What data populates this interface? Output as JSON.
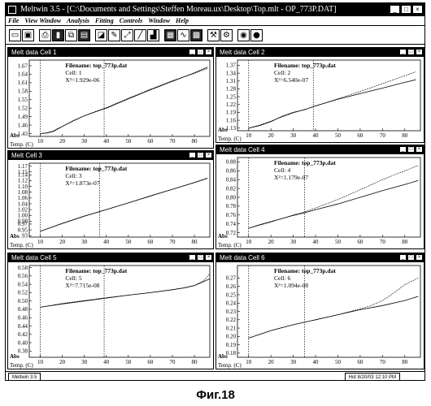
{
  "app": {
    "title": "Meltwin 3.5 - [C:\\Documents and Settings\\Steffen Moreau.ux\\Desktop\\Top.mlt - OP_773P.DAT]",
    "window_controls": [
      "_",
      "□",
      "×"
    ]
  },
  "menu": [
    "File",
    "View Window",
    "Analysis",
    "Fitting",
    "Controls",
    "Window",
    "Help"
  ],
  "toolbar_icons": [
    "open-icon",
    "save-icon",
    "print-icon",
    "melt-icon",
    "copy-icon",
    "paste-icon",
    "plot-icon",
    "edit-icon",
    "zoom-icon",
    "fit-icon",
    "chart-icon",
    "table-icon",
    "curve-icon",
    "wave-icon",
    "tools-icon",
    "gear-icon",
    "cd-icon",
    "record-icon"
  ],
  "windows": [
    {
      "title": "Melt data Cell 1",
      "filename_label": "Filename: top_773p.dat",
      "cell_label": "Cell: 1",
      "chi_label": "X²=1.929e-06",
      "xlabel": "Temp. (C)",
      "ylabel": "Abs"
    },
    {
      "title": "Melt data Cell 2",
      "filename_label": "Filename: top_773p.dat",
      "cell_label": "Cell: 2",
      "chi_label": "X²=6.540e-07",
      "xlabel": "Temp. (C)",
      "ylabel": "Abs"
    },
    {
      "title": "Melt Cell 3",
      "filename_label": "Filename: top_773p.dat",
      "cell_label": "Cell: 3",
      "chi_label": "X²=1.873e-07",
      "xlabel": "Temp. (C)",
      "ylabel": "Abs"
    },
    {
      "title": "Melt data Cell 4",
      "filename_label": "Filename: top_773p.dat",
      "cell_label": "Cell: 4",
      "chi_label": "X²=1.179e-07",
      "xlabel": "Temp. (C)",
      "ylabel": "Abs"
    },
    {
      "title": "Melt data Cell 5",
      "filename_label": "Filename: top_773p.dat",
      "cell_label": "Cell: 5",
      "chi_label": "X²=7.715e-08",
      "xlabel": "Temp. (C)",
      "ylabel": "Abs"
    },
    {
      "title": "Melt data Cell 6",
      "filename_label": "Filename: top_773p.dat",
      "cell_label": "Cell: 6",
      "chi_label": "X²=1.094e-08",
      "xlabel": "Temp. (C)",
      "ylabel": "Abs"
    }
  ],
  "chart_data": [
    {
      "type": "line",
      "xlabel": "Temp. (C)",
      "ylabel": "Abs",
      "xlim": [
        5,
        87
      ],
      "ylim": [
        1.42,
        1.69
      ],
      "xticks": [
        10,
        20,
        30,
        40,
        50,
        60,
        70,
        80
      ],
      "yticks": [
        1.43,
        1.46,
        1.49,
        1.52,
        1.55,
        1.58,
        1.61,
        1.64,
        1.67
      ],
      "ytick_labels": [
        "1.43",
        "1.46",
        "1.49",
        "1.52",
        "1.55",
        "1.58",
        "1.61",
        "1.64",
        "1.67"
      ],
      "vlines": [
        10,
        39
      ],
      "series": [
        {
          "role": "data",
          "x": [
            10,
            13,
            16,
            20,
            25,
            30,
            35,
            40,
            50,
            60,
            70,
            80,
            86
          ],
          "y": [
            1.43,
            1.432,
            1.438,
            1.455,
            1.475,
            1.493,
            1.507,
            1.52,
            1.553,
            1.585,
            1.615,
            1.645,
            1.665
          ]
        },
        {
          "role": "fit",
          "x": [
            10,
            13,
            16,
            20,
            25,
            30,
            35,
            40,
            50,
            60,
            70,
            80,
            86
          ],
          "y": [
            1.43,
            1.433,
            1.44,
            1.456,
            1.476,
            1.493,
            1.508,
            1.522,
            1.555,
            1.587,
            1.617,
            1.643,
            1.66
          ]
        }
      ]
    },
    {
      "type": "line",
      "xlabel": "Temp. (C)",
      "ylabel": "Abs",
      "xlim": [
        5,
        87
      ],
      "ylim": [
        1.12,
        1.39
      ],
      "xticks": [
        10,
        20,
        30,
        40,
        50,
        60,
        70,
        80
      ],
      "yticks": [
        1.13,
        1.16,
        1.19,
        1.22,
        1.25,
        1.28,
        1.31,
        1.34,
        1.37
      ],
      "ytick_labels": [
        "1.13",
        "1.16",
        "1.19",
        "1.22",
        "1.25",
        "1.28",
        "1.31",
        "1.34",
        "1.37"
      ],
      "vlines": [
        10,
        39
      ],
      "series": [
        {
          "role": "data",
          "x": [
            10,
            15,
            20,
            25,
            30,
            35,
            40,
            50,
            60,
            70,
            80,
            85
          ],
          "y": [
            1.13,
            1.14,
            1.155,
            1.175,
            1.19,
            1.2,
            1.215,
            1.24,
            1.262,
            1.283,
            1.305,
            1.315
          ]
        },
        {
          "role": "fit",
          "x": [
            10,
            15,
            20,
            25,
            30,
            35,
            40,
            50,
            60,
            70,
            80,
            85
          ],
          "y": [
            1.13,
            1.142,
            1.157,
            1.173,
            1.188,
            1.201,
            1.214,
            1.242,
            1.27,
            1.3,
            1.33,
            1.345
          ]
        }
      ]
    },
    {
      "type": "line",
      "xlabel": "Temp. (C)",
      "ylabel": "Abs",
      "xlim": [
        5,
        87
      ],
      "ylim": [
        0.925,
        1.18
      ],
      "xticks": [
        10,
        20,
        30,
        40,
        50,
        60,
        70,
        80
      ],
      "yticks": [
        0.93,
        0.95,
        0.97,
        0.98,
        1.0,
        1.02,
        1.04,
        1.06,
        1.08,
        1.1,
        1.12,
        1.14,
        1.15,
        1.17
      ],
      "ytick_labels": [
        ".93",
        "0.95",
        "0.97",
        "0.98",
        "1.00",
        "1.02",
        "1.04",
        "1.06",
        "1.08",
        "1.10",
        "1.12",
        "1.14",
        "1.15",
        "1.17"
      ],
      "vlines": [
        10,
        37
      ],
      "series": [
        {
          "role": "data",
          "x": [
            10,
            20,
            30,
            40,
            50,
            60,
            70,
            80,
            86
          ],
          "y": [
            0.945,
            0.972,
            0.997,
            1.02,
            1.043,
            1.067,
            1.09,
            1.113,
            1.128
          ]
        },
        {
          "role": "fit",
          "x": [
            10,
            20,
            30,
            40,
            50,
            60,
            70,
            80,
            86
          ],
          "y": [
            0.945,
            0.973,
            0.998,
            1.02,
            1.043,
            1.066,
            1.09,
            1.114,
            1.129
          ]
        }
      ]
    },
    {
      "type": "line",
      "xlabel": "Temp. (C)",
      "ylabel": "Abs",
      "xlim": [
        5,
        87
      ],
      "ylim": [
        0.71,
        0.89
      ],
      "xticks": [
        10,
        20,
        30,
        40,
        50,
        60,
        70,
        80
      ],
      "yticks": [
        0.72,
        0.74,
        0.76,
        0.78,
        0.8,
        0.82,
        0.84,
        0.86,
        0.88
      ],
      "ytick_labels": [
        "0.72",
        "0.74",
        "0.76",
        "0.78",
        "0.80",
        "0.82",
        "0.84",
        "0.86",
        "0.88"
      ],
      "vlines": [
        10,
        35
      ],
      "series": [
        {
          "role": "data",
          "x": [
            10,
            15,
            20,
            25,
            30,
            35,
            40,
            50,
            60,
            70,
            80,
            86
          ],
          "y": [
            0.73,
            0.738,
            0.745,
            0.752,
            0.759,
            0.765,
            0.772,
            0.785,
            0.8,
            0.815,
            0.829,
            0.838
          ]
        },
        {
          "role": "fit",
          "x": [
            10,
            15,
            20,
            25,
            30,
            35,
            40,
            50,
            60,
            70,
            80,
            86
          ],
          "y": [
            0.73,
            0.737,
            0.744,
            0.752,
            0.76,
            0.767,
            0.776,
            0.795,
            0.817,
            0.84,
            0.86,
            0.872
          ]
        }
      ]
    },
    {
      "type": "line",
      "xlabel": "Temp. (C)",
      "ylabel": "Abs",
      "xlim": [
        5,
        87
      ],
      "ylim": [
        0.365,
        0.585
      ],
      "xticks": [
        10,
        20,
        30,
        40,
        50,
        60,
        70,
        80
      ],
      "yticks": [
        0.38,
        0.4,
        0.42,
        0.44,
        0.46,
        0.48,
        0.5,
        0.52,
        0.54,
        0.56,
        0.58
      ],
      "ytick_labels": [
        "0.38",
        "0.40",
        "0.42",
        "0.44",
        "0.46",
        "0.48",
        "0.50",
        "0.52",
        "0.54",
        "0.56",
        "0.58"
      ],
      "vlines": [
        10,
        39
      ],
      "series": [
        {
          "role": "data",
          "x": [
            10,
            20,
            30,
            40,
            50,
            60,
            70,
            75,
            80,
            84,
            87
          ],
          "y": [
            0.485,
            0.493,
            0.5,
            0.507,
            0.514,
            0.52,
            0.527,
            0.531,
            0.537,
            0.546,
            0.553
          ]
        },
        {
          "role": "fit",
          "x": [
            10,
            20,
            30,
            40,
            50,
            60,
            70,
            75,
            80,
            84,
            87
          ],
          "y": [
            0.485,
            0.494,
            0.501,
            0.508,
            0.514,
            0.52,
            0.527,
            0.531,
            0.537,
            0.548,
            0.565
          ]
        }
      ]
    },
    {
      "type": "line",
      "xlabel": "Temp. (C)",
      "ylabel": "Abs",
      "xlim": [
        5,
        87
      ],
      "ylim": [
        0.175,
        0.285
      ],
      "xticks": [
        10,
        20,
        30,
        40,
        50,
        60,
        70,
        80
      ],
      "yticks": [
        0.18,
        0.19,
        0.2,
        0.21,
        0.22,
        0.23,
        0.24,
        0.25,
        0.26,
        0.27
      ],
      "ytick_labels": [
        "0.18",
        "0.19",
        "0.20",
        "0.21",
        "0.22",
        "0.23",
        "0.24",
        "0.25",
        "0.26",
        "0.27"
      ],
      "vlines": [
        10,
        35
      ],
      "series": [
        {
          "role": "data",
          "x": [
            10,
            20,
            30,
            40,
            50,
            60,
            70,
            80,
            86
          ],
          "y": [
            0.198,
            0.207,
            0.214,
            0.22,
            0.226,
            0.232,
            0.237,
            0.243,
            0.248
          ]
        },
        {
          "role": "fit",
          "x": [
            10,
            20,
            30,
            40,
            50,
            60,
            65,
            70,
            75,
            80,
            86
          ],
          "y": [
            0.198,
            0.207,
            0.214,
            0.22,
            0.226,
            0.233,
            0.237,
            0.243,
            0.252,
            0.262,
            0.27
          ]
        }
      ]
    }
  ],
  "status": {
    "left": "Meltwin 3.5",
    "right": "Hot 8/20/03 12:10 PM"
  },
  "caption": "Фиг.18"
}
